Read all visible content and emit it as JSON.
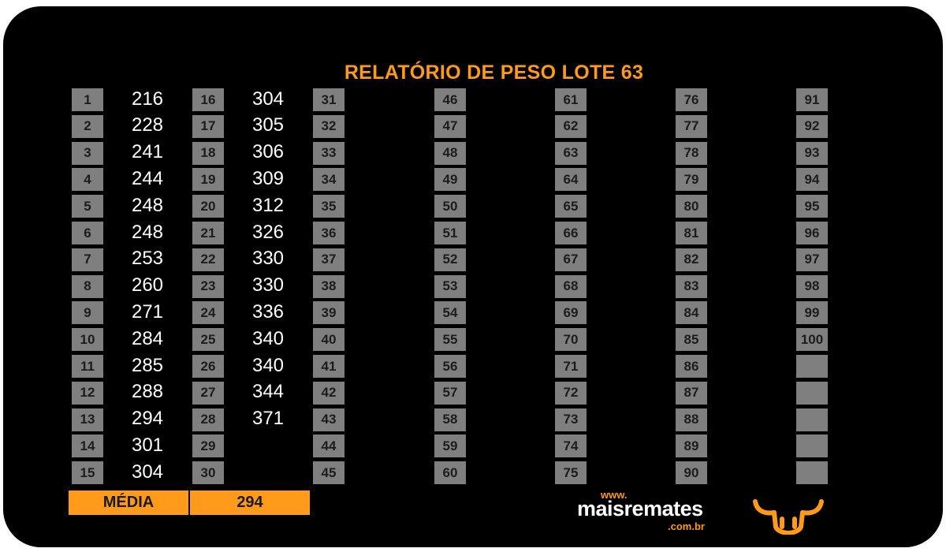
{
  "title": "RELATÓRIO DE PESO LOTE  63",
  "columns": [
    {
      "numbers": [
        "1",
        "2",
        "3",
        "4",
        "5",
        "6",
        "7",
        "8",
        "9",
        "10",
        "11",
        "12",
        "13",
        "14",
        "15"
      ],
      "weights": [
        "216",
        "228",
        "241",
        "244",
        "248",
        "248",
        "253",
        "260",
        "271",
        "284",
        "285",
        "288",
        "294",
        "301",
        "304"
      ]
    },
    {
      "numbers": [
        "16",
        "17",
        "18",
        "19",
        "20",
        "21",
        "22",
        "23",
        "24",
        "25",
        "26",
        "27",
        "28",
        "29",
        "30"
      ],
      "weights": [
        "304",
        "305",
        "306",
        "309",
        "312",
        "326",
        "330",
        "330",
        "336",
        "340",
        "340",
        "344",
        "371",
        "",
        ""
      ]
    },
    {
      "numbers": [
        "31",
        "32",
        "33",
        "34",
        "35",
        "36",
        "37",
        "38",
        "39",
        "40",
        "41",
        "42",
        "43",
        "44",
        "45"
      ],
      "weights": []
    },
    {
      "numbers": [
        "46",
        "47",
        "48",
        "49",
        "50",
        "51",
        "52",
        "53",
        "54",
        "55",
        "56",
        "57",
        "58",
        "59",
        "60"
      ],
      "weights": []
    },
    {
      "numbers": [
        "61",
        "62",
        "63",
        "64",
        "65",
        "66",
        "67",
        "68",
        "69",
        "70",
        "71",
        "72",
        "73",
        "74",
        "75"
      ],
      "weights": []
    },
    {
      "numbers": [
        "76",
        "77",
        "78",
        "79",
        "80",
        "81",
        "82",
        "83",
        "84",
        "85",
        "86",
        "87",
        "88",
        "89",
        "90"
      ],
      "weights": []
    },
    {
      "numbers": [
        "91",
        "92",
        "93",
        "94",
        "95",
        "96",
        "97",
        "98",
        "99",
        "100",
        "",
        "",
        "",
        "",
        ""
      ],
      "weights": []
    }
  ],
  "summary": {
    "label": "MÉDIA",
    "value": "294"
  },
  "logo": {
    "prefix": "www.",
    "name": "maisremates",
    "suffix": ".com.br"
  },
  "colors": {
    "accent": "#ff9a1a",
    "cell": "#7f7f7f",
    "background": "#000000"
  },
  "icons": {
    "logo": "bull-head-icon"
  }
}
